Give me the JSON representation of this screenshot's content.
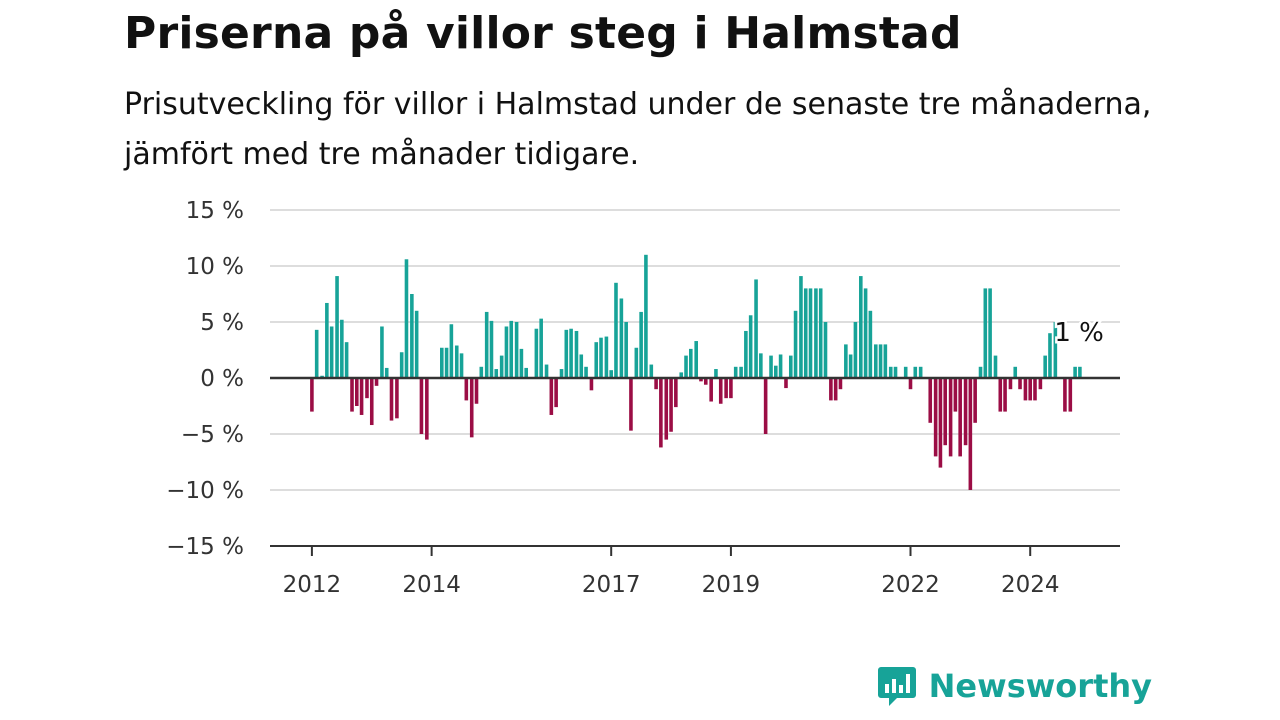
{
  "header": {
    "title": "Priserna på villor steg i Halmstad",
    "subtitle": "Prisutveckling för villor i Halmstad under de senaste tre månaderna, jämfört med tre månader tidigare."
  },
  "brand": {
    "name": "Newsworthy",
    "icon": "newsworthy-logo-icon"
  },
  "colors": {
    "positive": "#17a398",
    "negative": "#9b0d45",
    "axis": "#333333",
    "grid": "#dddddd"
  },
  "chart_data": {
    "type": "bar",
    "title": "Priserna på villor steg i Halmstad",
    "xlabel": "",
    "ylabel": "",
    "ylim": [
      -15,
      15
    ],
    "y_ticks": [
      15,
      10,
      5,
      0,
      -5,
      -10,
      -15
    ],
    "y_tick_labels": [
      "15 %",
      "10 %",
      "5 %",
      "0 %",
      "−5 %",
      "−10 %",
      "−15 %"
    ],
    "x_ticks": [
      2012,
      2014,
      2017,
      2019,
      2022,
      2024
    ],
    "x_range": [
      2011.3,
      2025.5
    ],
    "grid": true,
    "last_value_label": "1 %",
    "series": [
      {
        "values": [
          [
            2012.0,
            -3.0
          ],
          [
            2012.08,
            4.3
          ],
          [
            2012.17,
            0.2
          ],
          [
            2012.25,
            6.7
          ],
          [
            2012.33,
            4.6
          ],
          [
            2012.42,
            9.1
          ],
          [
            2012.5,
            5.2
          ],
          [
            2012.58,
            3.2
          ],
          [
            2012.67,
            -3.0
          ],
          [
            2012.75,
            -2.5
          ],
          [
            2012.83,
            -3.3
          ],
          [
            2012.92,
            -1.8
          ],
          [
            2013.0,
            -4.2
          ],
          [
            2013.08,
            -0.7
          ],
          [
            2013.17,
            4.6
          ],
          [
            2013.25,
            0.9
          ],
          [
            2013.33,
            -3.8
          ],
          [
            2013.42,
            -3.6
          ],
          [
            2013.5,
            2.3
          ],
          [
            2013.58,
            10.6
          ],
          [
            2013.67,
            7.5
          ],
          [
            2013.75,
            6.0
          ],
          [
            2013.83,
            -5.0
          ],
          [
            2013.92,
            -5.5
          ],
          [
            2014.17,
            2.7
          ],
          [
            2014.25,
            2.7
          ],
          [
            2014.33,
            4.8
          ],
          [
            2014.42,
            2.9
          ],
          [
            2014.5,
            2.2
          ],
          [
            2014.58,
            -2.0
          ],
          [
            2014.67,
            -5.3
          ],
          [
            2014.75,
            -2.3
          ],
          [
            2014.83,
            1.0
          ],
          [
            2014.92,
            5.9
          ],
          [
            2015.0,
            5.1
          ],
          [
            2015.08,
            0.8
          ],
          [
            2015.17,
            2.0
          ],
          [
            2015.25,
            4.6
          ],
          [
            2015.33,
            5.1
          ],
          [
            2015.42,
            5.0
          ],
          [
            2015.5,
            2.6
          ],
          [
            2015.58,
            0.9
          ],
          [
            2015.75,
            4.4
          ],
          [
            2015.83,
            5.3
          ],
          [
            2015.92,
            1.2
          ],
          [
            2016.0,
            -3.3
          ],
          [
            2016.08,
            -2.6
          ],
          [
            2016.17,
            0.8
          ],
          [
            2016.25,
            4.3
          ],
          [
            2016.33,
            4.4
          ],
          [
            2016.42,
            4.2
          ],
          [
            2016.5,
            2.1
          ],
          [
            2016.58,
            1.0
          ],
          [
            2016.67,
            -1.1
          ],
          [
            2016.75,
            3.2
          ],
          [
            2016.83,
            3.6
          ],
          [
            2016.92,
            3.7
          ],
          [
            2017.0,
            0.7
          ],
          [
            2017.08,
            8.5
          ],
          [
            2017.17,
            7.1
          ],
          [
            2017.25,
            5.0
          ],
          [
            2017.33,
            -4.7
          ],
          [
            2017.42,
            2.7
          ],
          [
            2017.5,
            5.9
          ],
          [
            2017.58,
            11.0
          ],
          [
            2017.67,
            1.2
          ],
          [
            2017.75,
            -1.0
          ],
          [
            2017.83,
            -6.2
          ],
          [
            2017.92,
            -5.5
          ],
          [
            2018.0,
            -4.8
          ],
          [
            2018.08,
            -2.6
          ],
          [
            2018.17,
            0.5
          ],
          [
            2018.25,
            2.0
          ],
          [
            2018.33,
            2.6
          ],
          [
            2018.42,
            3.3
          ],
          [
            2018.5,
            -0.3
          ],
          [
            2018.58,
            -0.6
          ],
          [
            2018.67,
            -2.1
          ],
          [
            2018.75,
            0.8
          ],
          [
            2018.83,
            -2.3
          ],
          [
            2018.92,
            -1.8
          ],
          [
            2019.0,
            -1.8
          ],
          [
            2019.08,
            1.0
          ],
          [
            2019.17,
            1.0
          ],
          [
            2019.25,
            4.2
          ],
          [
            2019.33,
            5.6
          ],
          [
            2019.42,
            8.8
          ],
          [
            2019.5,
            2.2
          ],
          [
            2019.58,
            -5.0
          ],
          [
            2019.67,
            2.0
          ],
          [
            2019.75,
            1.1
          ],
          [
            2019.83,
            2.1
          ],
          [
            2019.92,
            -0.9
          ],
          [
            2020.0,
            2.0
          ],
          [
            2020.08,
            6.0
          ],
          [
            2020.17,
            9.1
          ],
          [
            2020.25,
            8.0
          ],
          [
            2020.33,
            8.0
          ],
          [
            2020.42,
            8.0
          ],
          [
            2020.5,
            8.0
          ],
          [
            2020.58,
            5.0
          ],
          [
            2020.67,
            -2.0
          ],
          [
            2020.75,
            -2.0
          ],
          [
            2020.83,
            -1.0
          ],
          [
            2020.92,
            3.0
          ],
          [
            2021.0,
            2.1
          ],
          [
            2021.08,
            5.0
          ],
          [
            2021.17,
            9.1
          ],
          [
            2021.25,
            8.0
          ],
          [
            2021.33,
            6.0
          ],
          [
            2021.42,
            3.0
          ],
          [
            2021.5,
            3.0
          ],
          [
            2021.58,
            3.0
          ],
          [
            2021.67,
            1.0
          ],
          [
            2021.75,
            1.0
          ],
          [
            2021.92,
            1.0
          ],
          [
            2022.0,
            -1.0
          ],
          [
            2022.08,
            1.0
          ],
          [
            2022.17,
            1.0
          ],
          [
            2022.33,
            -4.0
          ],
          [
            2022.42,
            -7.0
          ],
          [
            2022.5,
            -8.0
          ],
          [
            2022.58,
            -6.0
          ],
          [
            2022.67,
            -7.0
          ],
          [
            2022.75,
            -3.0
          ],
          [
            2022.83,
            -7.0
          ],
          [
            2022.92,
            -6.0
          ],
          [
            2023.0,
            -10.0
          ],
          [
            2023.08,
            -4.0
          ],
          [
            2023.17,
            1.0
          ],
          [
            2023.25,
            8.0
          ],
          [
            2023.33,
            8.0
          ],
          [
            2023.42,
            2.0
          ],
          [
            2023.5,
            -3.0
          ],
          [
            2023.58,
            -3.0
          ],
          [
            2023.67,
            -1.0
          ],
          [
            2023.75,
            1.0
          ],
          [
            2023.83,
            -1.0
          ],
          [
            2023.92,
            -2.0
          ],
          [
            2024.0,
            -2.0
          ],
          [
            2024.08,
            -2.0
          ],
          [
            2024.17,
            -1.0
          ],
          [
            2024.25,
            2.0
          ],
          [
            2024.33,
            4.0
          ],
          [
            2024.42,
            5.0
          ],
          [
            2024.58,
            -3.0
          ],
          [
            2024.67,
            -3.0
          ],
          [
            2024.75,
            1.0
          ],
          [
            2024.83,
            1.0
          ]
        ]
      }
    ]
  }
}
